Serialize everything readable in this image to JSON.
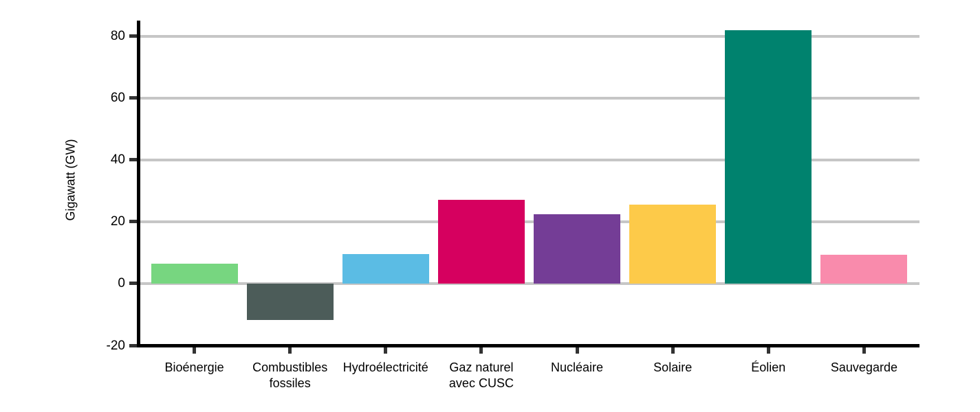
{
  "chart_data": {
    "type": "bar",
    "title": "",
    "xlabel": "",
    "ylabel": "Gigawatt (GW)",
    "ylim": [
      -20,
      85
    ],
    "yticks": [
      -20,
      0,
      20,
      40,
      60,
      80
    ],
    "grid": "horizontal",
    "legend": "none",
    "categories": [
      "Bioénergie",
      "Combustibles\nfossiles",
      "Hydroélectricité",
      "Gaz naturel\navec CUSC",
      "Nucléaire",
      "Solaire",
      "Éolien",
      "Sauvegarde"
    ],
    "values": [
      6.4,
      -11.8,
      9.5,
      27.0,
      22.5,
      25.4,
      81.8,
      9.3
    ],
    "colors": [
      "#77D680",
      "#4C5C59",
      "#5BBCE4",
      "#D6005F",
      "#743D96",
      "#FDCA49",
      "#00826E",
      "#F98BAC"
    ],
    "grid_color": "#C6C6C6",
    "axis_color": "#000000",
    "tick_color": "#333333"
  }
}
